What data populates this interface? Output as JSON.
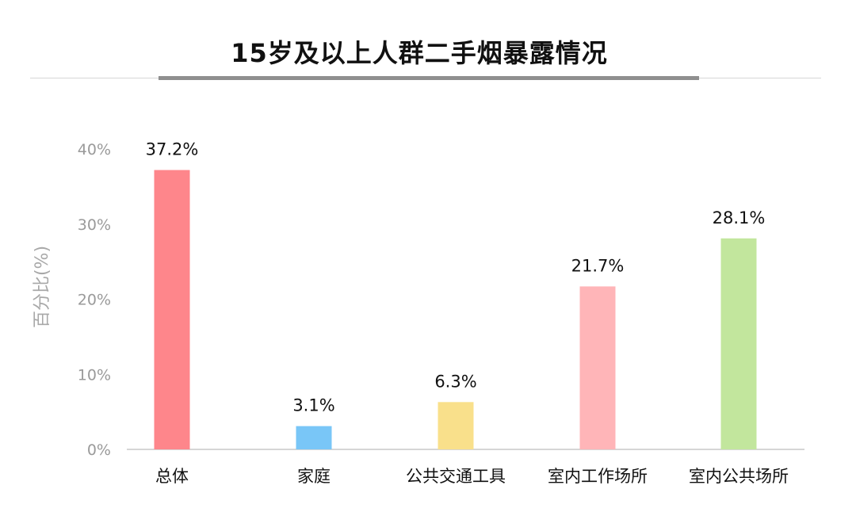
{
  "chart_data": {
    "type": "bar",
    "title": "15岁及以上人群二手烟暴露情况",
    "ylabel": "百分比(%)",
    "xlabel": "",
    "ylim": [
      0,
      40
    ],
    "yticks": [
      {
        "value": 0,
        "label": "0%"
      },
      {
        "value": 10,
        "label": "10%"
      },
      {
        "value": 20,
        "label": "20%"
      },
      {
        "value": 30,
        "label": "30%"
      },
      {
        "value": 40,
        "label": "40%"
      }
    ],
    "categories": [
      "总体",
      "家庭",
      "公共交通工具",
      "室内工作场所",
      "室内公共场所"
    ],
    "values": [
      37.2,
      3.1,
      6.3,
      21.7,
      28.1
    ],
    "value_labels": [
      "37.2%",
      "3.1%",
      "6.3%",
      "21.7%",
      "28.1%"
    ],
    "colors": [
      "#fe868b",
      "#79c6f7",
      "#f9e08b",
      "#ffb5b8",
      "#c2e69d"
    ],
    "grid": false,
    "legend": "none"
  }
}
